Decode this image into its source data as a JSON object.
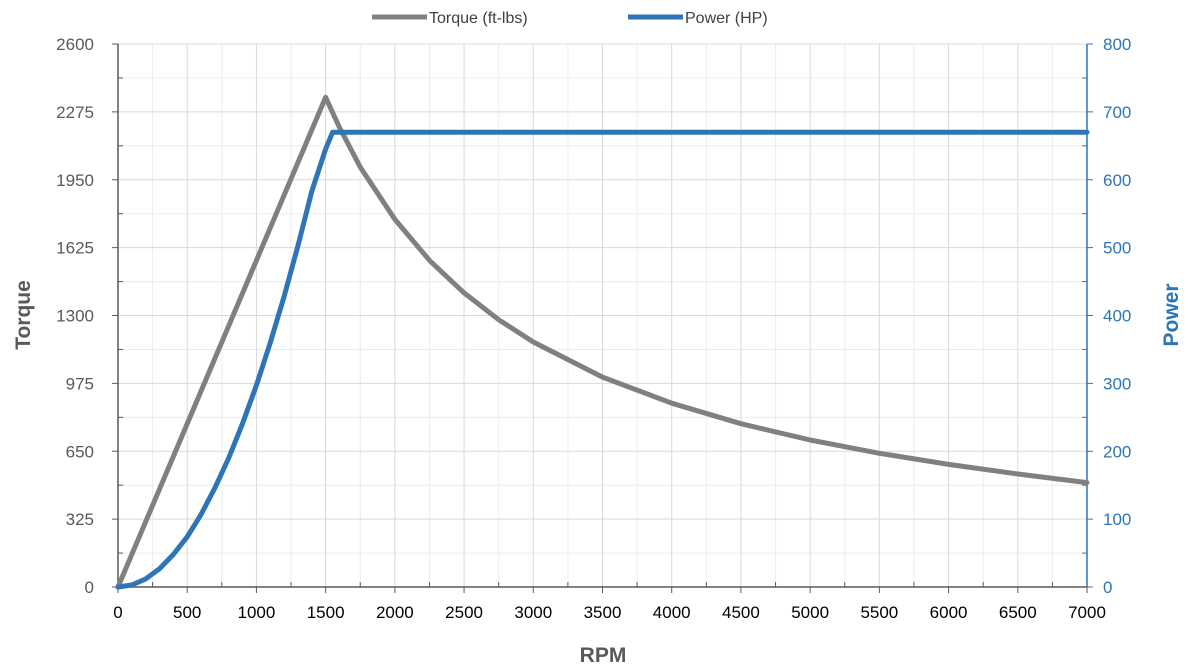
{
  "chart_data": {
    "type": "line",
    "title": "",
    "xlabel": "RPM",
    "ylabel_left": "Torque",
    "ylabel_right": "Power",
    "xlim": [
      0,
      7000
    ],
    "ylim_left": [
      0,
      2600
    ],
    "ylim_right": [
      0,
      800
    ],
    "x_ticks": [
      "0",
      "500",
      "1000",
      "1500",
      "2000",
      "2500",
      "3000",
      "3500",
      "4000",
      "4500",
      "5000",
      "5500",
      "6000",
      "6500",
      "7000"
    ],
    "y_left_ticks": [
      "0",
      "325",
      "650",
      "975",
      "1300",
      "1625",
      "1950",
      "2275",
      "2600"
    ],
    "y_right_ticks": [
      "0",
      "100",
      "200",
      "300",
      "400",
      "500",
      "600",
      "700",
      "800"
    ],
    "grid": true,
    "legend_position": "top",
    "colors": {
      "torque": "#808080",
      "power": "#2e75b6",
      "left_axis_text": "#595959",
      "right_axis_text": "#2e75b6"
    },
    "series": [
      {
        "name": "Torque (ft-lbs)",
        "axis": "left",
        "x": [
          0,
          1500,
          1600,
          1750,
          2000,
          2250,
          2500,
          2750,
          3000,
          3500,
          4000,
          4500,
          5000,
          5500,
          6000,
          6500,
          7000
        ],
        "values": [
          0,
          2345,
          2200,
          2010,
          1760,
          1564,
          1408,
          1280,
          1173,
          1005,
          880,
          782,
          704,
          640,
          587,
          541,
          500
        ]
      },
      {
        "name": "Power (HP)",
        "axis": "right",
        "x": [
          0,
          100,
          200,
          300,
          400,
          500,
          600,
          700,
          800,
          900,
          1000,
          1100,
          1200,
          1300,
          1400,
          1500,
          1550,
          2000,
          3000,
          4000,
          5000,
          6000,
          7000
        ],
        "values": [
          0,
          3,
          12,
          27,
          48,
          74,
          107,
          146,
          190,
          241,
          297,
          360,
          428,
          503,
          583,
          645,
          670,
          670,
          670,
          670,
          670,
          670,
          670
        ]
      }
    ]
  }
}
